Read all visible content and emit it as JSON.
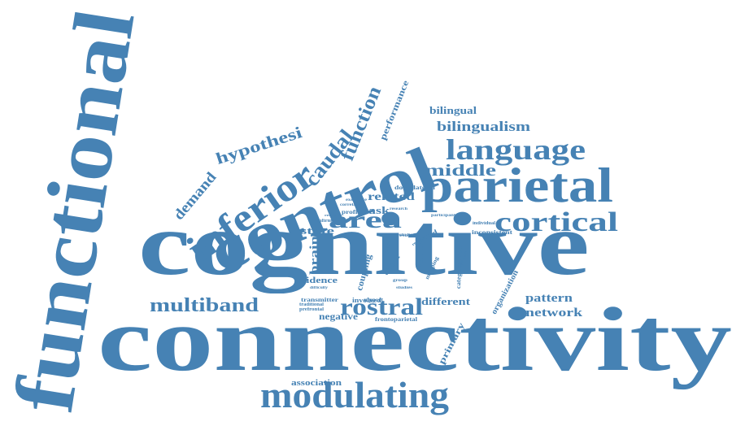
{
  "color": "#4682b4",
  "words": [
    {
      "id": "functional",
      "text": "functional"
    },
    {
      "id": "connectivity",
      "text": "connectivity"
    },
    {
      "id": "cognitive",
      "text": "cognitive"
    },
    {
      "id": "control",
      "text": "control"
    },
    {
      "id": "parietal",
      "text": "parietal"
    },
    {
      "id": "inferior",
      "text": "inferior"
    },
    {
      "id": "modulating",
      "text": "modulating"
    },
    {
      "id": "language",
      "text": "language"
    },
    {
      "id": "cortical",
      "text": "cortical"
    },
    {
      "id": "area",
      "text": "area"
    },
    {
      "id": "rostral",
      "text": "rostral"
    },
    {
      "id": "multiband",
      "text": "multiband"
    },
    {
      "id": "caudal",
      "text": "caudal"
    },
    {
      "id": "function",
      "text": "function"
    },
    {
      "id": "hypothesi",
      "text": "hypothesi"
    },
    {
      "id": "middle",
      "text": "middle"
    },
    {
      "id": "bilingualism",
      "text": "bilingualism"
    },
    {
      "id": "bilingual",
      "text": "bilingual"
    },
    {
      "id": "demand",
      "text": "demand"
    },
    {
      "id": "performance",
      "text": "performance"
    },
    {
      "id": "related",
      "text": "related"
    },
    {
      "id": "task",
      "text": "task"
    },
    {
      "id": "state",
      "text": "state"
    },
    {
      "id": "pattern",
      "text": "pattern"
    },
    {
      "id": "network",
      "text": "network"
    },
    {
      "id": "different",
      "text": "different"
    },
    {
      "id": "brain",
      "text": "brain"
    },
    {
      "id": "evidence",
      "text": "evidence"
    },
    {
      "id": "negative",
      "text": "negative"
    },
    {
      "id": "primary",
      "text": "primary"
    },
    {
      "id": "association",
      "text": "association"
    },
    {
      "id": "organization",
      "text": "organization"
    },
    {
      "id": "coupling",
      "text": "coupling"
    },
    {
      "id": "cluster",
      "text": "cluster"
    },
    {
      "id": "dorsolateral",
      "text": "dorsolateral"
    },
    {
      "id": "inconsistent",
      "text": "inconsistent"
    },
    {
      "id": "based",
      "text": "based"
    },
    {
      "id": "part",
      "text": "part"
    },
    {
      "id": "involved",
      "text": "involved"
    },
    {
      "id": "transmitter",
      "text": "transmitter"
    },
    {
      "id": "frontoparietal",
      "text": "frontoparietal"
    },
    {
      "id": "prefrontal",
      "text": "prefrontal"
    },
    {
      "id": "confirm",
      "text": "confirm"
    },
    {
      "id": "profile",
      "text": "profile"
    },
    {
      "id": "correlated",
      "text": "correlated"
    },
    {
      "id": "executive",
      "text": "executive"
    },
    {
      "id": "traditional",
      "text": "traditional"
    },
    {
      "id": "support",
      "text": "support"
    },
    {
      "id": "categorization",
      "text": "categorization"
    },
    {
      "id": "modulate",
      "text": "modulate"
    },
    {
      "id": "mapping",
      "text": "mapping"
    },
    {
      "id": "individual",
      "text": "individual"
    },
    {
      "id": "participant",
      "text": "participant"
    },
    {
      "id": "research",
      "text": "research"
    },
    {
      "id": "result",
      "text": "result"
    },
    {
      "id": "study",
      "text": "study"
    },
    {
      "id": "group",
      "text": "group"
    },
    {
      "id": "studies",
      "text": "studies"
    },
    {
      "id": "difficulty",
      "text": "difficulty"
    },
    {
      "id": "receptor",
      "text": "receptor"
    },
    {
      "id": "resting",
      "text": "resting"
    },
    {
      "id": "difference",
      "text": "difference"
    }
  ]
}
